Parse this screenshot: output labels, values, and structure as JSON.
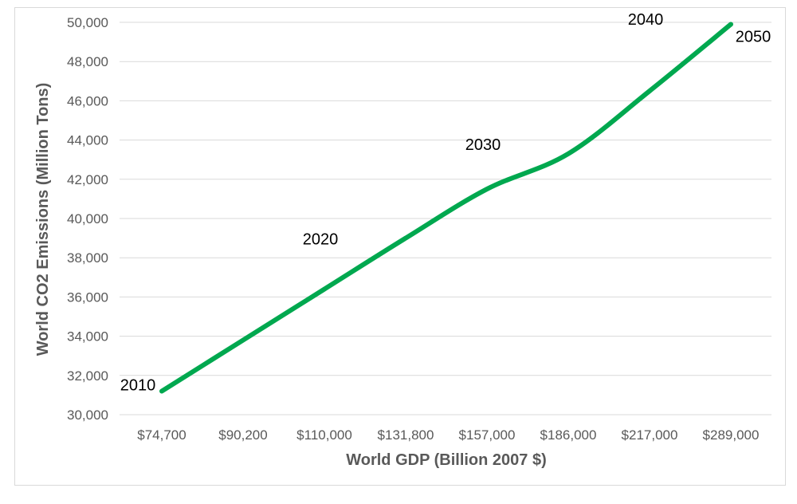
{
  "chart_data": {
    "type": "line",
    "title": "",
    "xlabel": "World GDP (Billion 2007 $)",
    "ylabel": "World CO2 Emissions (Million Tons)",
    "categories": [
      "$74,700",
      "$90,200",
      "$110,000",
      "$131,800",
      "$157,000",
      "$186,000",
      "$217,000",
      "$289,000"
    ],
    "series": [
      {
        "values": [
          31200,
          33800,
          36400,
          39000,
          41500,
          43300,
          46500,
          49900
        ]
      }
    ],
    "ylim": [
      30000,
      50000
    ],
    "yticks": [
      30000,
      32000,
      34000,
      36000,
      38000,
      40000,
      42000,
      44000,
      46000,
      48000,
      50000
    ],
    "ytick_labels": [
      "30,000",
      "32,000",
      "34,000",
      "36,000",
      "38,000",
      "40,000",
      "42,000",
      "44,000",
      "46,000",
      "48,000",
      "50,000"
    ],
    "point_labels": [
      {
        "index": 0,
        "text": "2010"
      },
      {
        "index": 2,
        "text": "2020"
      },
      {
        "index": 4,
        "text": "2030"
      },
      {
        "index": 6,
        "text": "2040"
      },
      {
        "index": 7,
        "text": "2050"
      }
    ],
    "grid": true,
    "legend": "none",
    "line_color": "#00a84f"
  }
}
